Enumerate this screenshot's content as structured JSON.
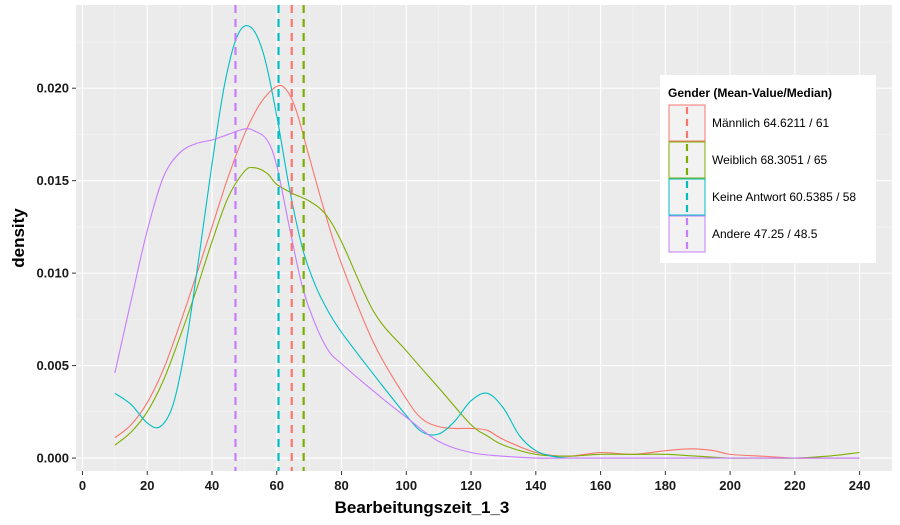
{
  "chart_data": {
    "type": "line",
    "subtype": "density",
    "xlabel": "Bearbeitungszeit_1_3",
    "ylabel": "density",
    "xlim": [
      -2,
      250
    ],
    "ylim": [
      -0.0007,
      0.0245
    ],
    "x_ticks": [
      0,
      20,
      40,
      60,
      80,
      100,
      120,
      140,
      160,
      180,
      200,
      220,
      240
    ],
    "y_ticks": [
      0.0,
      0.005,
      0.01,
      0.015,
      0.02
    ],
    "y_tick_labels": [
      "0.000",
      "0.005",
      "0.010",
      "0.015",
      "0.020"
    ],
    "grid": true,
    "legend": {
      "title": "Gender (Mean-Value/Median)",
      "position": "right",
      "entries": [
        "Männlich 64.6211 / 61",
        "Weiblich 68.3051 / 65",
        "Keine Antwort 60.5385 / 58",
        "Andere 47.25 / 48.5"
      ]
    },
    "series": [
      {
        "name": "Männlich 64.6211 / 61",
        "color": "#F8766D",
        "mean_line": 64.6211,
        "x": [
          10,
          15,
          20,
          25,
          30,
          35,
          40,
          45,
          50,
          55,
          60,
          63,
          66,
          70,
          75,
          80,
          90,
          100,
          105,
          110,
          115,
          120,
          125,
          130,
          140,
          150,
          160,
          170,
          180,
          188,
          195,
          200,
          210,
          220,
          230,
          240
        ],
        "y": [
          0.0011,
          0.0018,
          0.003,
          0.0048,
          0.0072,
          0.0098,
          0.0125,
          0.0152,
          0.0175,
          0.0192,
          0.0201,
          0.0199,
          0.0188,
          0.0163,
          0.0132,
          0.0105,
          0.0062,
          0.0032,
          0.0021,
          0.0017,
          0.0016,
          0.0016,
          0.0015,
          0.001,
          0.0003,
          0.0001,
          0.0003,
          0.0002,
          0.0004,
          0.0005,
          0.0004,
          0.0002,
          0.0001,
          0.0,
          0.0,
          0.0
        ]
      },
      {
        "name": "Weiblich 68.3051 / 65",
        "color": "#7CAE00",
        "mean_line": 68.3051,
        "x": [
          10,
          15,
          20,
          25,
          30,
          35,
          40,
          45,
          50,
          53,
          57,
          60,
          65,
          70,
          75,
          80,
          90,
          100,
          110,
          120,
          125,
          130,
          140,
          150,
          160,
          170,
          180,
          190,
          200,
          210,
          220,
          230,
          240
        ],
        "y": [
          0.0007,
          0.0014,
          0.0025,
          0.0042,
          0.0065,
          0.009,
          0.0117,
          0.0141,
          0.0155,
          0.0157,
          0.0154,
          0.0148,
          0.0143,
          0.0139,
          0.0132,
          0.0117,
          0.0079,
          0.0058,
          0.0038,
          0.0018,
          0.0012,
          0.0007,
          0.0002,
          0.0001,
          0.0002,
          0.0002,
          0.0002,
          0.0001,
          0.0,
          0.0,
          0.0,
          0.0001,
          0.0003
        ]
      },
      {
        "name": "Keine Antwort 60.5385 / 58",
        "color": "#00BFC4",
        "mean_line": 60.5385,
        "x": [
          10,
          15,
          20,
          24,
          28,
          32,
          36,
          40,
          44,
          48,
          52,
          56,
          60,
          64,
          68,
          72,
          76,
          80,
          90,
          100,
          105,
          110,
          115,
          120,
          125,
          130,
          135,
          140,
          145,
          150
        ],
        "y": [
          0.0035,
          0.0029,
          0.0019,
          0.0017,
          0.0029,
          0.0062,
          0.0109,
          0.0159,
          0.0203,
          0.0229,
          0.0233,
          0.0218,
          0.0185,
          0.0145,
          0.0113,
          0.0093,
          0.0079,
          0.0068,
          0.0045,
          0.0023,
          0.0014,
          0.0013,
          0.002,
          0.0031,
          0.0035,
          0.0027,
          0.0012,
          0.0004,
          0.0001,
          0.0
        ]
      },
      {
        "name": "Andere 47.25 / 48.5",
        "color": "#C77CFF",
        "mean_line": 47.25,
        "x": [
          10,
          15,
          20,
          25,
          30,
          35,
          40,
          45,
          50,
          53,
          57,
          60,
          64,
          68,
          72,
          76,
          80,
          90,
          100,
          110,
          120,
          130,
          140,
          150,
          160,
          180,
          200,
          220,
          240
        ],
        "y": [
          0.0046,
          0.0085,
          0.0123,
          0.0152,
          0.0165,
          0.017,
          0.0172,
          0.0175,
          0.0178,
          0.0177,
          0.0172,
          0.0158,
          0.0124,
          0.0092,
          0.0072,
          0.0058,
          0.0051,
          0.0036,
          0.0022,
          0.0009,
          0.0003,
          0.0001,
          0.0,
          0.0,
          0.0,
          0.0,
          0.0,
          0.0,
          0.0
        ]
      }
    ]
  }
}
